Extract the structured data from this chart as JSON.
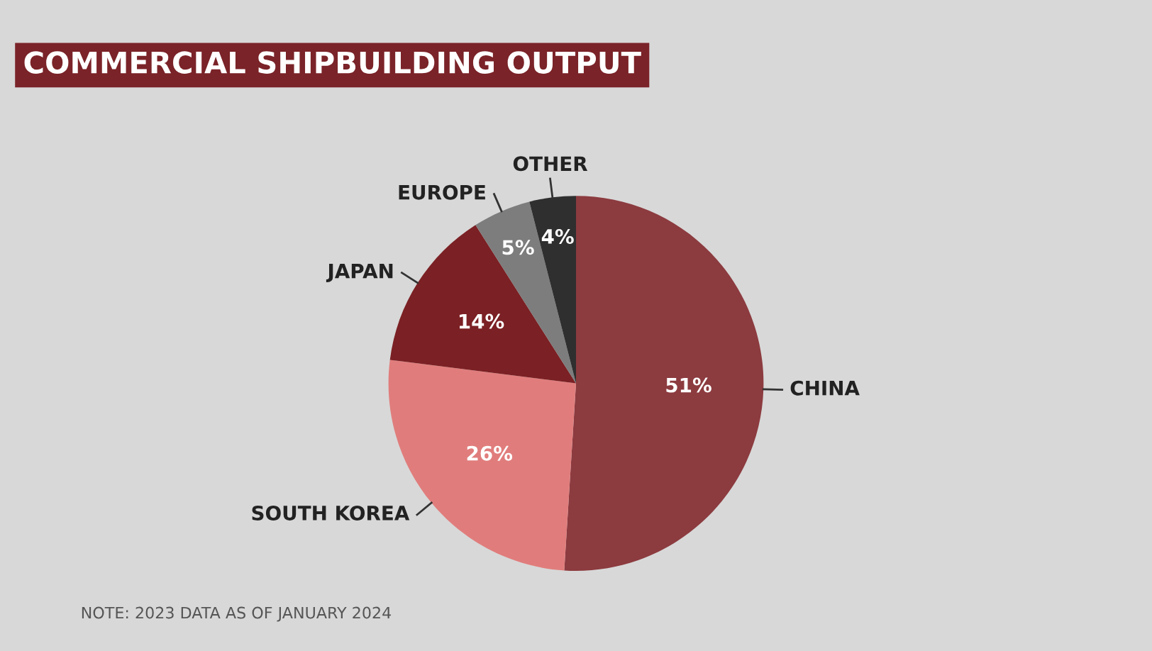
{
  "chart_data": {
    "type": "pie",
    "title": "COMMERCIAL SHIPBUILDING OUTPUT",
    "categories": [
      "CHINA",
      "SOUTH KOREA",
      "JAPAN",
      "EUROPE",
      "OTHER"
    ],
    "values": [
      51,
      26,
      14,
      5,
      4
    ],
    "colors": [
      "#8c3b3f",
      "#e07d7c",
      "#7b2024",
      "#7d7d7d",
      "#2f2f2f"
    ],
    "value_labels": [
      "51%",
      "26%",
      "14%",
      "5%",
      "4%"
    ],
    "annotations": [
      "NOTE: 2023 DATA AS OF JANUARY 2024"
    ]
  }
}
